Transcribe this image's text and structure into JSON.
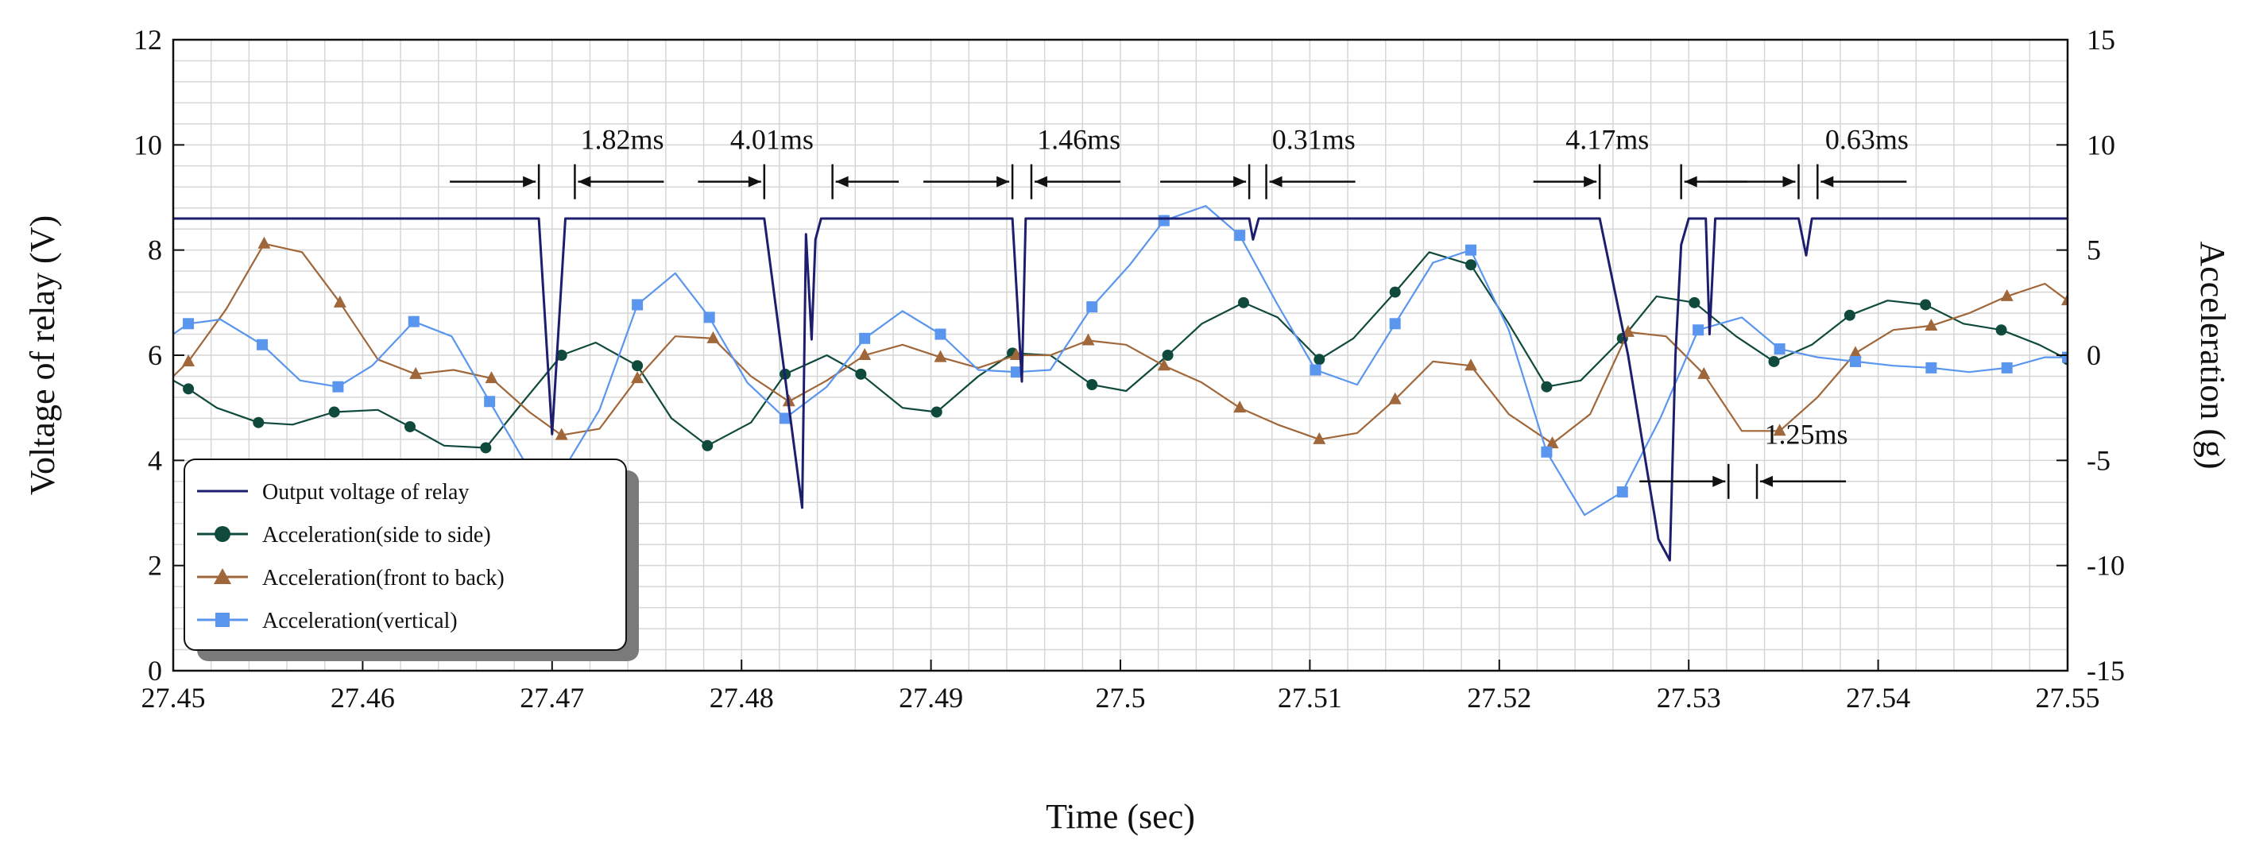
{
  "colors": {
    "relay": "#1e1e6e",
    "side": "#0f4a3c",
    "front": "#a0673a",
    "vertical": "#5b96ee",
    "grid": "#d6d6d6",
    "axis": "#111111"
  },
  "chart_data": {
    "type": "line",
    "xlabel": "Time (sec)",
    "ylabel": "Voltage of relay (V)",
    "y2label": "Acceleration (g)",
    "xlim": [
      27.45,
      27.55
    ],
    "ylim": [
      0,
      12
    ],
    "y2lim": [
      -15,
      15
    ],
    "grid": true,
    "x_ticks": [
      27.45,
      27.46,
      27.47,
      27.48,
      27.49,
      27.5,
      27.51,
      27.52,
      27.53,
      27.54,
      27.55
    ],
    "x_tick_labels": [
      "27.45",
      "27.46",
      "27.47",
      "27.48",
      "27.49",
      "27.5",
      "27.51",
      "27.52",
      "27.53",
      "27.54",
      "27.55"
    ],
    "y_ticks": [
      0,
      2,
      4,
      6,
      8,
      10,
      12
    ],
    "y_tick_labels": [
      "0",
      "2",
      "4",
      "6",
      "8",
      "10",
      "12"
    ],
    "y2_ticks": [
      -15,
      -10,
      -5,
      0,
      5,
      10,
      15
    ],
    "y2_tick_labels": [
      "-15",
      "-10",
      "-5",
      "0",
      "5",
      "10",
      "15"
    ],
    "legend_position": "bottom-left",
    "legend": [
      "Output voltage of relay",
      "Acceleration(side to side)",
      "Acceleration(front to back)",
      "Acceleration(vertical)"
    ],
    "relay": {
      "name": "Output voltage of relay",
      "axis": "left",
      "x": [
        27.45,
        27.4693,
        27.47,
        27.4707,
        27.4712,
        27.4812,
        27.4832,
        27.4834,
        27.4837,
        27.4839,
        27.4842,
        27.4848,
        27.4858,
        27.4943,
        27.4948,
        27.495,
        27.4953,
        27.5068,
        27.507,
        27.5073,
        27.5077,
        27.5253,
        27.5268,
        27.5284,
        27.529,
        27.5293,
        27.5296,
        27.53,
        27.5309,
        27.5311,
        27.5314,
        27.5316,
        27.5318,
        27.5321,
        27.5358,
        27.5362,
        27.5365,
        27.5368,
        27.55
      ],
      "y": [
        8.6,
        8.6,
        4.5,
        8.6,
        8.6,
        8.6,
        3.1,
        8.3,
        6.3,
        8.2,
        8.6,
        8.6,
        8.6,
        8.6,
        5.5,
        8.6,
        8.6,
        8.6,
        8.2,
        8.6,
        8.6,
        8.6,
        6.0,
        2.5,
        2.1,
        6.0,
        8.1,
        8.6,
        8.6,
        6.4,
        8.6,
        8.6,
        8.6,
        8.6,
        8.6,
        7.9,
        8.6,
        8.6,
        8.6
      ]
    },
    "series": [
      {
        "name": "Acceleration(side to side)",
        "axis": "right",
        "marker": "circle",
        "x": [
          27.45,
          27.4508,
          27.4523,
          27.4545,
          27.4563,
          27.4585,
          27.4608,
          27.4625,
          27.4643,
          27.4665,
          27.4683,
          27.4705,
          27.4723,
          27.4745,
          27.4763,
          27.4782,
          27.4805,
          27.4823,
          27.4845,
          27.4863,
          27.4885,
          27.4903,
          27.4925,
          27.4943,
          27.4963,
          27.4985,
          27.5003,
          27.5025,
          27.5043,
          27.5065,
          27.5083,
          27.5105,
          27.5123,
          27.5145,
          27.5163,
          27.5185,
          27.5205,
          27.5225,
          27.5243,
          27.5265,
          27.5283,
          27.5303,
          27.5325,
          27.5345,
          27.5365,
          27.5385,
          27.5405,
          27.5425,
          27.5445,
          27.5465,
          27.5485,
          27.55
        ],
        "y": [
          -1.2,
          -1.6,
          -2.5,
          -3.2,
          -3.3,
          -2.7,
          -2.6,
          -3.4,
          -4.3,
          -4.4,
          -2.4,
          0.0,
          0.6,
          -0.5,
          -3.0,
          -4.3,
          -3.2,
          -0.9,
          0.0,
          -0.9,
          -2.5,
          -2.7,
          -1.0,
          0.1,
          0.0,
          -1.4,
          -1.7,
          0.0,
          1.5,
          2.5,
          1.8,
          -0.2,
          0.8,
          3.0,
          4.9,
          4.3,
          1.5,
          -1.5,
          -1.2,
          0.8,
          2.8,
          2.5,
          0.9,
          -0.3,
          0.5,
          1.9,
          2.6,
          2.4,
          1.5,
          1.2,
          0.5,
          -0.2
        ]
      },
      {
        "name": "Acceleration(front to back)",
        "axis": "right",
        "marker": "triangle",
        "x": [
          27.45,
          27.4508,
          27.4528,
          27.4548,
          27.4568,
          27.4588,
          27.4608,
          27.4628,
          27.4648,
          27.4668,
          27.4688,
          27.4705,
          27.4725,
          27.4745,
          27.4765,
          27.4785,
          27.4805,
          27.4825,
          27.4845,
          27.4865,
          27.4885,
          27.4905,
          27.4925,
          27.4945,
          27.4963,
          27.4983,
          27.5003,
          27.5023,
          27.5043,
          27.5063,
          27.5083,
          27.5105,
          27.5125,
          27.5145,
          27.5165,
          27.5185,
          27.5205,
          27.5228,
          27.5248,
          27.5268,
          27.5288,
          27.5308,
          27.5328,
          27.5348,
          27.5368,
          27.5388,
          27.5408,
          27.5428,
          27.5448,
          27.5468,
          27.5488,
          27.55
        ],
        "y": [
          -1.0,
          -0.3,
          2.2,
          5.3,
          4.9,
          2.5,
          -0.2,
          -0.9,
          -0.7,
          -1.1,
          -2.7,
          -3.8,
          -3.5,
          -1.1,
          0.9,
          0.8,
          -1.0,
          -2.2,
          -1.2,
          0.0,
          0.5,
          -0.1,
          -0.6,
          0.0,
          0.0,
          0.7,
          0.5,
          -0.5,
          -1.3,
          -2.5,
          -3.3,
          -4.0,
          -3.7,
          -2.1,
          -0.3,
          -0.5,
          -2.8,
          -4.2,
          -2.8,
          1.1,
          0.9,
          -0.9,
          -3.6,
          -3.6,
          -2.0,
          0.1,
          1.2,
          1.4,
          2.0,
          2.8,
          3.4,
          2.6
        ]
      },
      {
        "name": "Acceleration(vertical)",
        "axis": "right",
        "marker": "square",
        "x": [
          27.45,
          27.4508,
          27.4525,
          27.4547,
          27.4567,
          27.4587,
          27.4605,
          27.4627,
          27.4647,
          27.4667,
          27.4687,
          27.4705,
          27.4725,
          27.4745,
          27.4765,
          27.4783,
          27.4803,
          27.4823,
          27.4845,
          27.4865,
          27.4885,
          27.4905,
          27.4925,
          27.4945,
          27.4963,
          27.4985,
          27.5005,
          27.5023,
          27.5045,
          27.5063,
          27.5083,
          27.5103,
          27.5125,
          27.5145,
          27.5165,
          27.5185,
          27.5205,
          27.5225,
          27.5245,
          27.5265,
          27.5285,
          27.5305,
          27.5328,
          27.5348,
          27.5368,
          27.5388,
          27.5408,
          27.5428,
          27.5448,
          27.5468,
          27.5488,
          27.55
        ],
        "y": [
          1.0,
          1.5,
          1.7,
          0.5,
          -1.2,
          -1.5,
          -0.5,
          1.6,
          0.9,
          -2.2,
          -5.3,
          -5.6,
          -2.6,
          2.4,
          3.9,
          1.8,
          -1.3,
          -3.0,
          -1.5,
          0.8,
          2.1,
          1.0,
          -0.7,
          -0.8,
          -0.7,
          2.3,
          4.3,
          6.4,
          7.1,
          5.7,
          2.4,
          -0.7,
          -1.4,
          1.5,
          4.4,
          5.0,
          1.2,
          -4.6,
          -7.6,
          -6.5,
          -3.0,
          1.2,
          1.8,
          0.3,
          -0.1,
          -0.3,
          -0.5,
          -0.6,
          -0.8,
          -0.6,
          -0.1,
          -0.1
        ]
      }
    ],
    "annotations": [
      {
        "label": "1.82ms",
        "x1": 27.4693,
        "x2": 27.4712,
        "y": 9.3,
        "text_x": 27.4715,
        "text_y": 10.1,
        "arrow_len": 0.0047
      },
      {
        "label": "4.01ms",
        "x1": 27.4812,
        "x2": 27.4848,
        "y": 9.3,
        "text_x": 27.4794,
        "text_y": 10.1,
        "arrow_len": 0.0035
      },
      {
        "label": "1.46ms",
        "x1": 27.4943,
        "x2": 27.4953,
        "y": 9.3,
        "text_x": 27.4956,
        "text_y": 10.1,
        "arrow_len": 0.0047
      },
      {
        "label": "0.31ms",
        "x1": 27.5068,
        "x2": 27.5077,
        "y": 9.3,
        "text_x": 27.508,
        "text_y": 10.1,
        "arrow_len": 0.0047
      },
      {
        "label": "4.17ms",
        "x1": 27.5253,
        "x2": 27.5296,
        "y": 9.3,
        "text_x": 27.5235,
        "text_y": 10.1,
        "arrow_len": 0.0035
      },
      {
        "label": "0.63ms",
        "x1": 27.5358,
        "x2": 27.5368,
        "y": 9.3,
        "text_x": 27.5372,
        "text_y": 10.1,
        "arrow_len": 0.0047
      },
      {
        "label": "1.25ms",
        "x1": 27.5321,
        "x2": 27.5336,
        "y": 3.6,
        "text_x": 27.534,
        "text_y": 4.5,
        "arrow_len": 0.0047
      }
    ]
  }
}
